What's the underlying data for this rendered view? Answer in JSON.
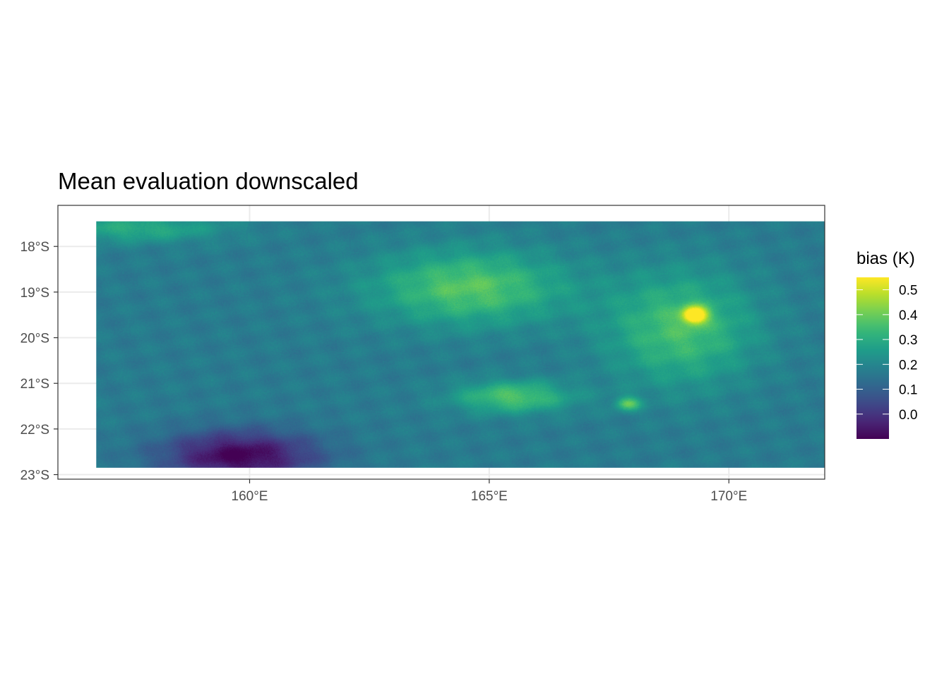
{
  "chart_data": {
    "type": "heatmap",
    "title": "Mean evaluation downscaled",
    "xlabel": "",
    "ylabel": "",
    "x_unit": "degrees east",
    "y_unit": "degrees south",
    "xlim": [
      156.0,
      172.0
    ],
    "ylim": [
      -23.1,
      -17.1
    ],
    "data_extent": {
      "lon": [
        156.8,
        172.0
      ],
      "lat": [
        -22.85,
        -17.45
      ]
    },
    "x_ticks": [
      {
        "value": 160,
        "label": "160°E"
      },
      {
        "value": 165,
        "label": "165°E"
      },
      {
        "value": 170,
        "label": "170°E"
      }
    ],
    "y_ticks": [
      {
        "value": -18,
        "label": "18°S"
      },
      {
        "value": -19,
        "label": "19°S"
      },
      {
        "value": -20,
        "label": "20°S"
      },
      {
        "value": -21,
        "label": "21°S"
      },
      {
        "value": -22,
        "label": "22°S"
      },
      {
        "value": -23,
        "label": "23°S"
      }
    ],
    "grid": true,
    "colorscale": "viridis",
    "color_range": [
      -0.1,
      0.55
    ],
    "legend": {
      "title": "bias (K)",
      "position": "right",
      "ticks": [
        {
          "value": 0.5,
          "label": "0.5"
        },
        {
          "value": 0.4,
          "label": "0.4"
        },
        {
          "value": 0.3,
          "label": "0.3"
        },
        {
          "value": 0.2,
          "label": "0.2"
        },
        {
          "value": 0.1,
          "label": "0.1"
        },
        {
          "value": 0.0,
          "label": "0.0"
        }
      ]
    },
    "field": {
      "base_value": 0.17,
      "features": [
        {
          "lon": 159.8,
          "lat": -22.6,
          "value": -0.1,
          "spread_lon": 1.6,
          "spread_lat": 0.55
        },
        {
          "lon": 164.6,
          "lat": -18.9,
          "value": 0.38,
          "spread_lon": 2.0,
          "spread_lat": 0.8
        },
        {
          "lon": 169.3,
          "lat": -19.5,
          "value": 0.55,
          "spread_lon": 0.25,
          "spread_lat": 0.18
        },
        {
          "lon": 169.0,
          "lat": -19.8,
          "value": 0.36,
          "spread_lon": 1.5,
          "spread_lat": 1.2
        },
        {
          "lon": 165.5,
          "lat": -21.3,
          "value": 0.37,
          "spread_lon": 1.2,
          "spread_lat": 0.35
        },
        {
          "lon": 167.9,
          "lat": -21.45,
          "value": 0.38,
          "spread_lon": 0.25,
          "spread_lat": 0.15
        },
        {
          "lon": 157.6,
          "lat": -17.6,
          "value": 0.3,
          "spread_lon": 1.8,
          "spread_lat": 0.3
        }
      ]
    }
  }
}
